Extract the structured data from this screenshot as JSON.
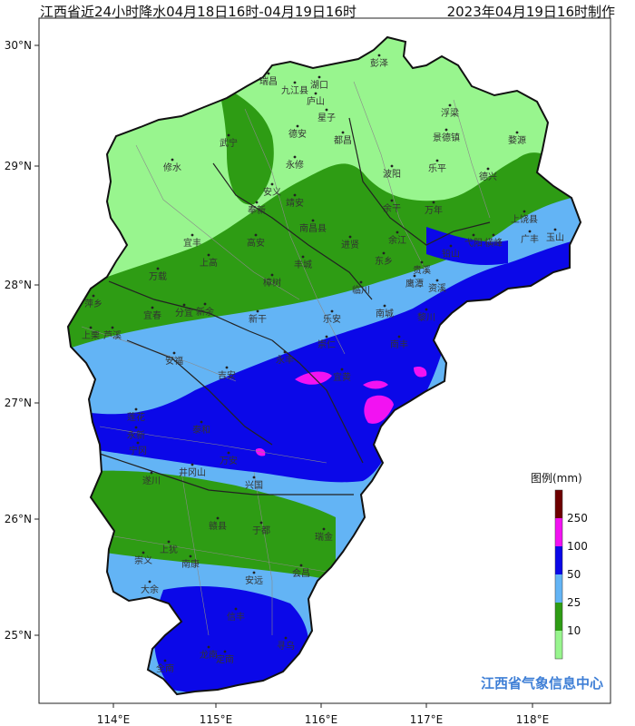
{
  "header": {
    "title": "江西省近24小时降水04月18日16时-04月19日16时",
    "issued": "2023年04月19日16时制作"
  },
  "axes": {
    "x_ticks": [
      "114°E",
      "115°E",
      "116°E",
      "117°E",
      "118°E"
    ],
    "y_ticks": [
      "30°N",
      "29°N",
      "28°N",
      "27°N",
      "26°N",
      "25°N"
    ]
  },
  "legend": {
    "title": "图例(mm)",
    "levels": [
      {
        "label": "10",
        "color": "#98f58e"
      },
      {
        "label": "25",
        "color": "#2e9c14"
      },
      {
        "label": "50",
        "color": "#63b4f5"
      },
      {
        "label": "100",
        "color": "#0b08e8"
      },
      {
        "label": "250",
        "color": "#f212f2"
      },
      {
        "label": "",
        "color": "#6e0000"
      }
    ]
  },
  "credit": "江西省气象信息中心",
  "counties": [
    "彭泽",
    "湖口",
    "九江县",
    "瑞昌",
    "庐山",
    "星子",
    "德安",
    "都昌",
    "武宁",
    "修水",
    "永修",
    "安义",
    "奉新",
    "靖安",
    "南昌县",
    "进贤",
    "余干",
    "波阳",
    "乐平",
    "景德镇",
    "浮梁",
    "婺源",
    "德兴",
    "万年",
    "弋阳",
    "横峰",
    "铅山",
    "上饶县",
    "玉山",
    "广丰",
    "宜丰",
    "上高",
    "万载",
    "高安",
    "丰城",
    "樟树",
    "新干",
    "宜春",
    "分宜",
    "新余",
    "萍乡",
    "芦溪",
    "上栗",
    "安福",
    "吉安",
    "永丰",
    "乐安",
    "崇仁",
    "宜黄",
    "南丰",
    "南城",
    "资溪",
    "黎川",
    "泰和",
    "万安",
    "遂川",
    "永新",
    "莲花",
    "宁冈",
    "井冈山",
    "兴国",
    "赣县",
    "于都",
    "瑞金",
    "会昌",
    "安远",
    "信丰",
    "南康",
    "上犹",
    "崇义",
    "大余",
    "龙南",
    "全南",
    "定南",
    "寻乌",
    "东乡",
    "临川",
    "贵溪",
    "余江",
    "鹰潭"
  ]
}
